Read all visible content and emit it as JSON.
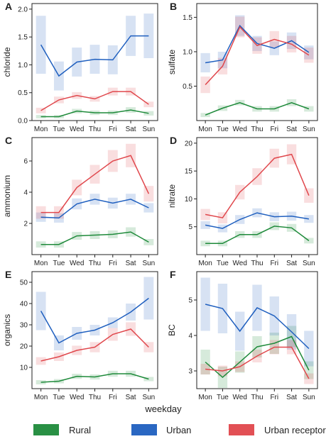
{
  "figure": {
    "xlabel": "weekday",
    "legend": [
      {
        "name": "Rural",
        "color": "#1e8a3a"
      },
      {
        "name": "Urban",
        "color": "#1f5fbf"
      },
      {
        "name": "Urban receptor",
        "color": "#e0474c"
      }
    ]
  },
  "chart_data": [
    {
      "panel": "A",
      "type": "line",
      "ylabel": "chloride",
      "categories": [
        "Mon",
        "Tue",
        "Wed",
        "Thu",
        "Fri",
        "Sat",
        "Sun"
      ],
      "ylim": [
        0,
        2.1
      ],
      "yticks": [
        0.0,
        0.5,
        1.0,
        1.5,
        2.0
      ],
      "tick_labels": [
        "0.0",
        "0.5",
        "1.0",
        "1.5",
        "2.0"
      ],
      "series": [
        {
          "name": "Rural",
          "values": [
            0.07,
            0.07,
            0.17,
            0.14,
            0.14,
            0.19,
            0.13
          ],
          "ci": [
            0.03,
            0.03,
            0.04,
            0.04,
            0.04,
            0.05,
            0.04
          ]
        },
        {
          "name": "Urban",
          "values": [
            1.36,
            0.8,
            1.05,
            1.1,
            1.09,
            1.52,
            1.52
          ],
          "ci": [
            0.52,
            0.26,
            0.26,
            0.26,
            0.26,
            0.36,
            0.4
          ]
        },
        {
          "name": "Urban receptor",
          "values": [
            0.18,
            0.37,
            0.45,
            0.39,
            0.52,
            0.52,
            0.29
          ],
          "ci": [
            0.05,
            0.06,
            0.06,
            0.05,
            0.07,
            0.07,
            0.05
          ]
        }
      ]
    },
    {
      "panel": "B",
      "type": "line",
      "ylabel": "sulfate",
      "categories": [
        "Mon",
        "Tue",
        "Wed",
        "Thu",
        "Fri",
        "Sat",
        "Sun"
      ],
      "ylim": [
        0,
        1.7
      ],
      "yticks": [
        0.5,
        1.0,
        1.5
      ],
      "tick_labels": [
        "0.5",
        "1.0",
        "1.5"
      ],
      "series": [
        {
          "name": "Rural",
          "values": [
            0.08,
            0.18,
            0.26,
            0.17,
            0.17,
            0.26,
            0.17
          ],
          "ci": [
            0.03,
            0.04,
            0.04,
            0.04,
            0.04,
            0.05,
            0.04
          ]
        },
        {
          "name": "Urban",
          "values": [
            0.84,
            0.88,
            1.38,
            1.12,
            1.05,
            1.16,
            0.99
          ],
          "ci": [
            0.14,
            0.12,
            0.15,
            0.11,
            0.1,
            0.12,
            0.1
          ]
        },
        {
          "name": "Urban receptor",
          "values": [
            0.52,
            0.79,
            1.36,
            1.09,
            1.18,
            1.11,
            0.95
          ],
          "ci": [
            0.12,
            0.12,
            0.15,
            0.12,
            0.12,
            0.12,
            0.11
          ]
        }
      ]
    },
    {
      "panel": "C",
      "type": "line",
      "ylabel": "ammonium",
      "categories": [
        "Mon",
        "Tue",
        "Wed",
        "Thu",
        "Fri",
        "Sat",
        "Sun"
      ],
      "ylim": [
        0,
        7.5
      ],
      "yticks": [
        2,
        4,
        6
      ],
      "tick_labels": [
        "2",
        "4",
        "6"
      ],
      "series": [
        {
          "name": "Rural",
          "values": [
            0.65,
            0.65,
            1.2,
            1.25,
            1.3,
            1.45,
            0.8
          ],
          "ci": [
            0.2,
            0.2,
            0.25,
            0.25,
            0.25,
            0.3,
            0.2
          ]
        },
        {
          "name": "Urban",
          "values": [
            2.4,
            2.35,
            3.25,
            3.55,
            3.3,
            3.55,
            3.0
          ],
          "ci": [
            0.3,
            0.3,
            0.35,
            0.35,
            0.35,
            0.35,
            0.3
          ]
        },
        {
          "name": "Urban receptor",
          "values": [
            2.7,
            2.7,
            4.3,
            5.15,
            6.0,
            6.35,
            3.9
          ],
          "ci": [
            0.4,
            0.4,
            0.5,
            0.6,
            0.7,
            0.75,
            0.5
          ]
        }
      ]
    },
    {
      "panel": "D",
      "type": "line",
      "ylabel": "nitrate",
      "categories": [
        "Mon",
        "Tue",
        "Wed",
        "Thu",
        "Fri",
        "Sat",
        "Sun"
      ],
      "ylim": [
        0,
        21
      ],
      "yticks": [
        5,
        10,
        15,
        20
      ],
      "tick_labels": [
        "5",
        "10",
        "15",
        "20"
      ],
      "series": [
        {
          "name": "Rural",
          "values": [
            2.0,
            2.0,
            3.6,
            3.6,
            5.1,
            4.8,
            2.5
          ],
          "ci": [
            0.5,
            0.5,
            0.6,
            0.6,
            0.7,
            0.7,
            0.5
          ]
        },
        {
          "name": "Urban",
          "values": [
            5.3,
            4.7,
            6.3,
            7.5,
            6.8,
            6.9,
            6.4
          ],
          "ci": [
            0.7,
            0.7,
            0.8,
            0.8,
            0.8,
            0.8,
            0.7
          ]
        },
        {
          "name": "Urban receptor",
          "values": [
            7.2,
            6.6,
            11.2,
            14.0,
            17.3,
            18.0,
            10.6
          ],
          "ci": [
            1.0,
            1.0,
            1.3,
            1.5,
            1.7,
            1.8,
            1.3
          ]
        }
      ]
    },
    {
      "panel": "E",
      "type": "line",
      "ylabel": "organics",
      "categories": [
        "Mon",
        "Tue",
        "Wed",
        "Thu",
        "Fri",
        "Sat",
        "Sun"
      ],
      "ylim": [
        0,
        55
      ],
      "yticks": [
        10,
        20,
        30,
        40,
        50
      ],
      "tick_labels": [
        "10",
        "20",
        "30",
        "40",
        "50"
      ],
      "series": [
        {
          "name": "Rural",
          "values": [
            3.0,
            3.5,
            5.8,
            5.5,
            7.0,
            7.0,
            4.5
          ],
          "ci": [
            1.0,
            1.0,
            1.2,
            1.2,
            1.4,
            1.4,
            1.0
          ]
        },
        {
          "name": "Urban",
          "values": [
            36.5,
            21.5,
            26.0,
            27.5,
            31.0,
            36.0,
            42.5
          ],
          "ci": [
            9.0,
            3.5,
            3.0,
            2.5,
            2.5,
            4.0,
            10.0
          ]
        },
        {
          "name": "Urban receptor",
          "values": [
            13.0,
            15.0,
            18.0,
            19.5,
            25.5,
            28.0,
            19.5
          ],
          "ci": [
            1.8,
            2.0,
            2.2,
            2.4,
            3.0,
            3.2,
            2.4
          ]
        }
      ]
    },
    {
      "panel": "F",
      "type": "line",
      "ylabel": "BC",
      "categories": [
        "Mon",
        "Tue",
        "Wed",
        "Thu",
        "Fri",
        "Sat",
        "Sun"
      ],
      "ylim": [
        2.5,
        5.8
      ],
      "yticks": [
        3,
        4,
        5
      ],
      "tick_labels": [
        "3",
        "4",
        "5"
      ],
      "series": [
        {
          "name": "Rural",
          "values": [
            3.25,
            2.82,
            3.25,
            3.68,
            3.78,
            3.97,
            3.02
          ],
          "ci": [
            0.35,
            0.3,
            0.3,
            0.3,
            0.3,
            0.3,
            0.25
          ]
        },
        {
          "name": "Urban",
          "values": [
            4.88,
            4.76,
            4.12,
            4.78,
            4.55,
            4.1,
            3.63
          ],
          "ci": [
            0.75,
            0.7,
            0.55,
            0.65,
            0.55,
            0.5,
            0.5
          ]
        },
        {
          "name": "Urban receptor",
          "values": [
            3.05,
            3.0,
            3.12,
            3.42,
            3.67,
            3.67,
            2.78
          ],
          "ci": [
            0.15,
            0.15,
            0.15,
            0.18,
            0.2,
            0.2,
            0.15
          ]
        }
      ]
    }
  ]
}
